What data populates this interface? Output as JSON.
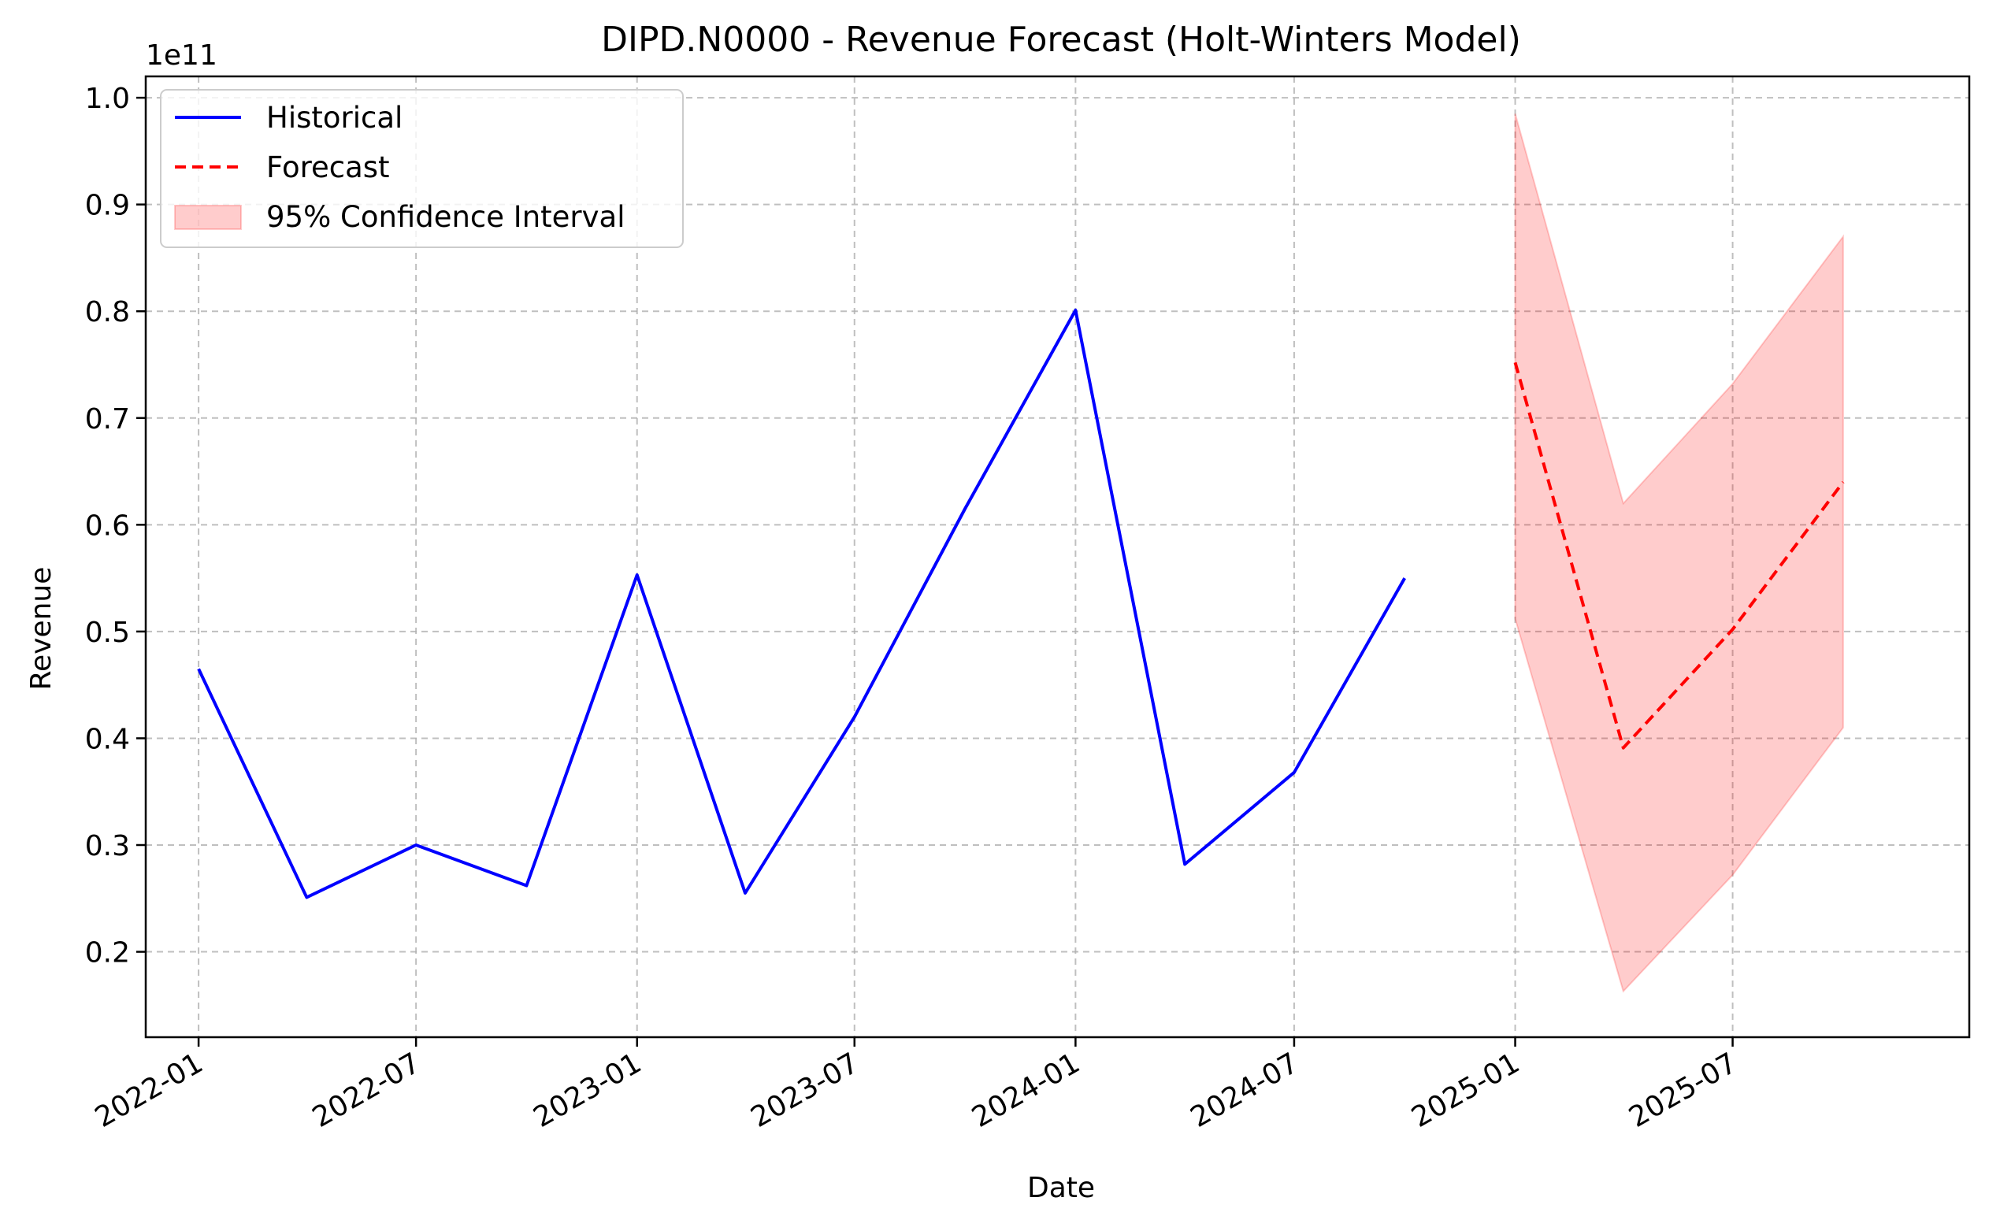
{
  "chart_data": {
    "type": "line",
    "title": "DIPD.N0000 - Revenue Forecast (Holt-Winters Model)",
    "xlabel": "Date",
    "ylabel": "Revenue",
    "y_offset_label": "1e11",
    "y_scale": 100000000000.0,
    "xlim": [
      "2021-11-18",
      "2026-01-14"
    ],
    "ylim": [
      0.12,
      1.02
    ],
    "grid": true,
    "legend_position": "top-left",
    "x_ticks": [
      "2022-01-01",
      "2022-07-01",
      "2023-01-01",
      "2023-07-01",
      "2024-01-01",
      "2024-07-01",
      "2025-01-01",
      "2025-07-01"
    ],
    "x_tick_labels": [
      "2022-01",
      "2022-07",
      "2023-01",
      "2023-07",
      "2024-01",
      "2024-07",
      "2025-01",
      "2025-07"
    ],
    "y_ticks": [
      0.2,
      0.3,
      0.4,
      0.5,
      0.6,
      0.7,
      0.8,
      0.9,
      1.0
    ],
    "y_tick_labels": [
      "0.2",
      "0.3",
      "0.4",
      "0.5",
      "0.6",
      "0.7",
      "0.8",
      "0.9",
      "1.0"
    ],
    "series": [
      {
        "name": "Historical",
        "color": "#0000ff",
        "style": "solid",
        "x": [
          "2022-01-01",
          "2022-04-01",
          "2022-07-01",
          "2022-10-01",
          "2023-01-01",
          "2023-04-01",
          "2023-07-01",
          "2023-10-01",
          "2024-01-01",
          "2024-04-01",
          "2024-07-01",
          "2024-10-01"
        ],
        "values": [
          0.465,
          0.251,
          0.3,
          0.262,
          0.553,
          0.255,
          0.42,
          0.615,
          0.801,
          0.282,
          0.368,
          0.55
        ]
      },
      {
        "name": "Forecast",
        "color": "#ff0000",
        "style": "dashed",
        "x": [
          "2025-01-01",
          "2025-04-01",
          "2025-07-01",
          "2025-10-01"
        ],
        "values": [
          0.752,
          0.391,
          0.502,
          0.64
        ]
      }
    ],
    "confidence_interval": {
      "name": "95% Confidence Interval",
      "color": "#ff0000",
      "x": [
        "2025-01-01",
        "2025-04-01",
        "2025-07-01",
        "2025-10-01"
      ],
      "lower": [
        0.512,
        0.163,
        0.272,
        0.41
      ],
      "upper": [
        0.985,
        0.62,
        0.732,
        0.87
      ]
    }
  }
}
